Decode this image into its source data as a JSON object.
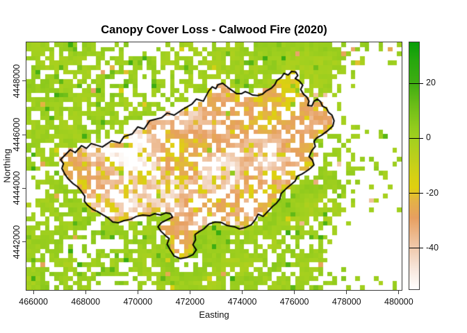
{
  "page": {
    "background": "#ffffff"
  },
  "chart_data": {
    "type": "heatmap",
    "title": "Canopy Cover Loss - Calwood Fire (2020)",
    "xlabel": "Easting",
    "ylabel": "Northing",
    "x_ticks": [
      466000,
      468000,
      470000,
      472000,
      474000,
      476000,
      478000,
      480000
    ],
    "y_ticks": [
      4442000,
      4444000,
      4446000,
      4448000
    ],
    "extent": {
      "xmin": 465730,
      "xmax": 480110,
      "ymin": 4440200,
      "ymax": 4449450
    },
    "value_range": [
      -55,
      35
    ],
    "grid": {
      "cols": 81,
      "rows": 54
    },
    "legend": {
      "position": "right",
      "ticks": [
        20,
        0,
        -20,
        -40
      ]
    },
    "color_stops": [
      [
        35,
        "#089d08"
      ],
      [
        28,
        "#28a80e"
      ],
      [
        20,
        "#3fad12"
      ],
      [
        12,
        "#6cbd18"
      ],
      [
        4,
        "#92cb1d"
      ],
      [
        0,
        "#a2d01e"
      ],
      [
        -7,
        "#bccf1c"
      ],
      [
        -14,
        "#d6d014"
      ],
      [
        -18,
        "#e0d010"
      ],
      [
        -23,
        "#e3b148"
      ],
      [
        -29,
        "#e79f60"
      ],
      [
        -36,
        "#edbb92"
      ],
      [
        -42,
        "#f2d2ba"
      ],
      [
        -48,
        "#f8e8de"
      ],
      [
        -55,
        "#ffffff"
      ]
    ],
    "na_color": "#ffffff",
    "axis_color": "#3a3a3a",
    "perimeter_color": "#000000",
    "fire_perimeter_utm": [
      [
        467040,
        4445070
      ],
      [
        467250,
        4445280
      ],
      [
        467410,
        4445440
      ],
      [
        467600,
        4445330
      ],
      [
        467840,
        4445590
      ],
      [
        468030,
        4445490
      ],
      [
        468210,
        4445670
      ],
      [
        468640,
        4445540
      ],
      [
        468990,
        4445770
      ],
      [
        469310,
        4445690
      ],
      [
        469470,
        4445930
      ],
      [
        469790,
        4446030
      ],
      [
        470000,
        4446290
      ],
      [
        470240,
        4446210
      ],
      [
        470450,
        4446520
      ],
      [
        470910,
        4446630
      ],
      [
        471120,
        4446810
      ],
      [
        471390,
        4446730
      ],
      [
        471710,
        4446940
      ],
      [
        472080,
        4447150
      ],
      [
        472240,
        4447330
      ],
      [
        472510,
        4447250
      ],
      [
        472720,
        4447640
      ],
      [
        472850,
        4447790
      ],
      [
        472990,
        4447720
      ],
      [
        473070,
        4447870
      ],
      [
        473250,
        4447920
      ],
      [
        473440,
        4447770
      ],
      [
        473600,
        4447660
      ],
      [
        473790,
        4447530
      ],
      [
        473970,
        4447530
      ],
      [
        474110,
        4447610
      ],
      [
        474240,
        4447560
      ],
      [
        474400,
        4447480
      ],
      [
        474590,
        4447460
      ],
      [
        474770,
        4447510
      ],
      [
        474930,
        4447640
      ],
      [
        475120,
        4447740
      ],
      [
        475250,
        4447870
      ],
      [
        475330,
        4448030
      ],
      [
        475490,
        4448130
      ],
      [
        475600,
        4448290
      ],
      [
        475760,
        4448230
      ],
      [
        475890,
        4448360
      ],
      [
        476050,
        4448340
      ],
      [
        476130,
        4448210
      ],
      [
        476030,
        4448100
      ],
      [
        476190,
        4448000
      ],
      [
        476320,
        4447850
      ],
      [
        476240,
        4447690
      ],
      [
        476350,
        4447510
      ],
      [
        476480,
        4447400
      ],
      [
        476560,
        4447250
      ],
      [
        476510,
        4447090
      ],
      [
        476670,
        4447070
      ],
      [
        476750,
        4447250
      ],
      [
        476880,
        4447330
      ],
      [
        477010,
        4447220
      ],
      [
        477070,
        4447070
      ],
      [
        477230,
        4446990
      ],
      [
        477310,
        4446830
      ],
      [
        477440,
        4446730
      ],
      [
        477520,
        4446520
      ],
      [
        477470,
        4446320
      ],
      [
        477250,
        4446130
      ],
      [
        477040,
        4445980
      ],
      [
        476850,
        4445880
      ],
      [
        476750,
        4445750
      ],
      [
        476800,
        4445560
      ],
      [
        476670,
        4445410
      ],
      [
        476560,
        4445180
      ],
      [
        476690,
        4445050
      ],
      [
        476750,
        4444870
      ],
      [
        476610,
        4444740
      ],
      [
        476450,
        4444630
      ],
      [
        476290,
        4444530
      ],
      [
        476110,
        4444450
      ],
      [
        476030,
        4444270
      ],
      [
        475870,
        4444140
      ],
      [
        475680,
        4443980
      ],
      [
        475490,
        4443800
      ],
      [
        475440,
        4443600
      ],
      [
        475310,
        4443440
      ],
      [
        475150,
        4443310
      ],
      [
        475010,
        4443160
      ],
      [
        474800,
        4442950
      ],
      [
        474610,
        4443030
      ],
      [
        474510,
        4442840
      ],
      [
        474350,
        4442640
      ],
      [
        474110,
        4442530
      ],
      [
        473890,
        4442480
      ],
      [
        473710,
        4442560
      ],
      [
        473410,
        4442610
      ],
      [
        473200,
        4442720
      ],
      [
        472960,
        4442740
      ],
      [
        472720,
        4442660
      ],
      [
        472530,
        4442480
      ],
      [
        472350,
        4442380
      ],
      [
        472190,
        4442270
      ],
      [
        472210,
        4442070
      ],
      [
        472110,
        4441890
      ],
      [
        472240,
        4441700
      ],
      [
        472110,
        4441520
      ],
      [
        471890,
        4441420
      ],
      [
        471630,
        4441370
      ],
      [
        471390,
        4441470
      ],
      [
        471250,
        4441680
      ],
      [
        471120,
        4441910
      ],
      [
        471200,
        4442120
      ],
      [
        471070,
        4442220
      ],
      [
        470880,
        4442400
      ],
      [
        470770,
        4442560
      ],
      [
        470910,
        4442720
      ],
      [
        471120,
        4442820
      ],
      [
        471330,
        4442920
      ],
      [
        471250,
        4443050
      ],
      [
        471070,
        4443080
      ],
      [
        470880,
        4443000
      ],
      [
        470640,
        4443050
      ],
      [
        470450,
        4442970
      ],
      [
        470190,
        4443000
      ],
      [
        469950,
        4442950
      ],
      [
        469730,
        4442840
      ],
      [
        469470,
        4442790
      ],
      [
        469250,
        4442710
      ],
      [
        469040,
        4442740
      ],
      [
        468850,
        4442900
      ],
      [
        468670,
        4443000
      ],
      [
        468450,
        4443130
      ],
      [
        468270,
        4443210
      ],
      [
        468080,
        4443360
      ],
      [
        467950,
        4443520
      ],
      [
        467970,
        4443700
      ],
      [
        467840,
        4443880
      ],
      [
        467710,
        4444040
      ],
      [
        467520,
        4444170
      ],
      [
        467330,
        4444350
      ],
      [
        467200,
        4444530
      ],
      [
        467090,
        4444740
      ],
      [
        467150,
        4444920
      ]
    ]
  }
}
